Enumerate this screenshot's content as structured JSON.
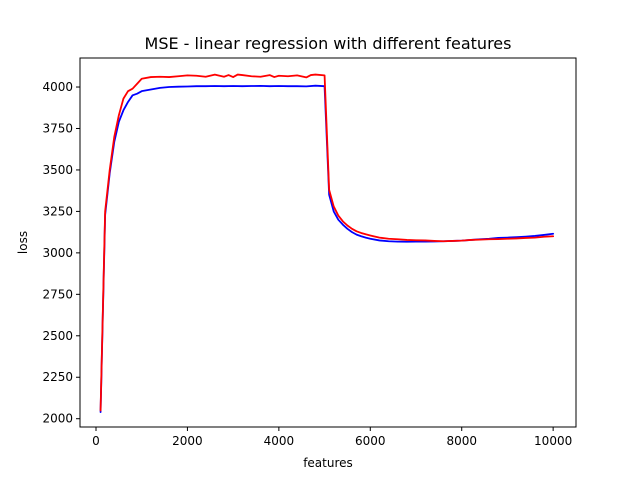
{
  "chart_data": {
    "type": "line",
    "title": "MSE - linear regression with different features",
    "xlabel": "features",
    "ylabel": "loss",
    "xlim": [
      -350,
      10500
    ],
    "ylim": [
      1950,
      4175
    ],
    "xticks": [
      0,
      2000,
      4000,
      6000,
      8000,
      10000
    ],
    "yticks": [
      2000,
      2250,
      2500,
      2750,
      3000,
      3250,
      3500,
      3750,
      4000
    ],
    "xtick_labels": [
      "0",
      "2000",
      "4000",
      "6000",
      "8000",
      "10000"
    ],
    "ytick_labels": [
      "2000",
      "2250",
      "2500",
      "2750",
      "3000",
      "3250",
      "3500",
      "3750",
      "4000"
    ],
    "grid": false,
    "colors": {
      "blue": "#0000ff",
      "red": "#ff0000"
    },
    "series": [
      {
        "color": "#0000ff",
        "x": [
          100,
          200,
          300,
          400,
          500,
          600,
          700,
          800,
          900,
          1000,
          1200,
          1400,
          1600,
          1800,
          2000,
          2200,
          2400,
          2600,
          2800,
          3000,
          3200,
          3400,
          3600,
          3800,
          4000,
          4200,
          4400,
          4600,
          4800,
          5000,
          5100,
          5200,
          5300,
          5400,
          5500,
          5600,
          5700,
          5800,
          5900,
          6000,
          6200,
          6400,
          6600,
          6800,
          7000,
          7200,
          7400,
          7600,
          7800,
          8000,
          8200,
          8400,
          8600,
          8800,
          9000,
          9200,
          9400,
          9600,
          9800,
          10000
        ],
        "y": [
          2040,
          3230,
          3480,
          3670,
          3790,
          3860,
          3910,
          3950,
          3960,
          3975,
          3985,
          3995,
          4000,
          4002,
          4003,
          4005,
          4005,
          4006,
          4005,
          4006,
          4005,
          4006,
          4007,
          4005,
          4006,
          4005,
          4005,
          4004,
          4008,
          4005,
          3350,
          3250,
          3200,
          3170,
          3145,
          3125,
          3110,
          3100,
          3092,
          3085,
          3075,
          3070,
          3068,
          3067,
          3068,
          3068,
          3069,
          3070,
          3072,
          3074,
          3078,
          3082,
          3085,
          3090,
          3092,
          3095,
          3098,
          3102,
          3108,
          3115
        ]
      },
      {
        "color": "#ff0000",
        "x": [
          100,
          200,
          300,
          400,
          500,
          600,
          700,
          800,
          900,
          1000,
          1200,
          1400,
          1600,
          1800,
          2000,
          2200,
          2400,
          2600,
          2800,
          2900,
          3000,
          3100,
          3200,
          3400,
          3600,
          3800,
          3900,
          4000,
          4200,
          4400,
          4600,
          4700,
          4800,
          5000,
          5100,
          5200,
          5300,
          5400,
          5500,
          5600,
          5700,
          5800,
          5900,
          6000,
          6200,
          6400,
          6600,
          6800,
          7000,
          7200,
          7400,
          7600,
          7800,
          8000,
          8200,
          8400,
          8600,
          8800,
          9000,
          9200,
          9400,
          9600,
          9800,
          10000
        ],
        "y": [
          2050,
          3250,
          3500,
          3700,
          3830,
          3930,
          3975,
          3990,
          4020,
          4050,
          4060,
          4062,
          4060,
          4065,
          4070,
          4068,
          4062,
          4075,
          4062,
          4072,
          4060,
          4075,
          4072,
          4065,
          4062,
          4072,
          4060,
          4068,
          4065,
          4070,
          4058,
          4072,
          4075,
          4070,
          3380,
          3280,
          3225,
          3190,
          3165,
          3145,
          3130,
          3120,
          3112,
          3105,
          3092,
          3085,
          3082,
          3078,
          3076,
          3075,
          3072,
          3070,
          3072,
          3074,
          3078,
          3080,
          3082,
          3083,
          3085,
          3087,
          3090,
          3092,
          3097,
          3100
        ]
      }
    ]
  }
}
